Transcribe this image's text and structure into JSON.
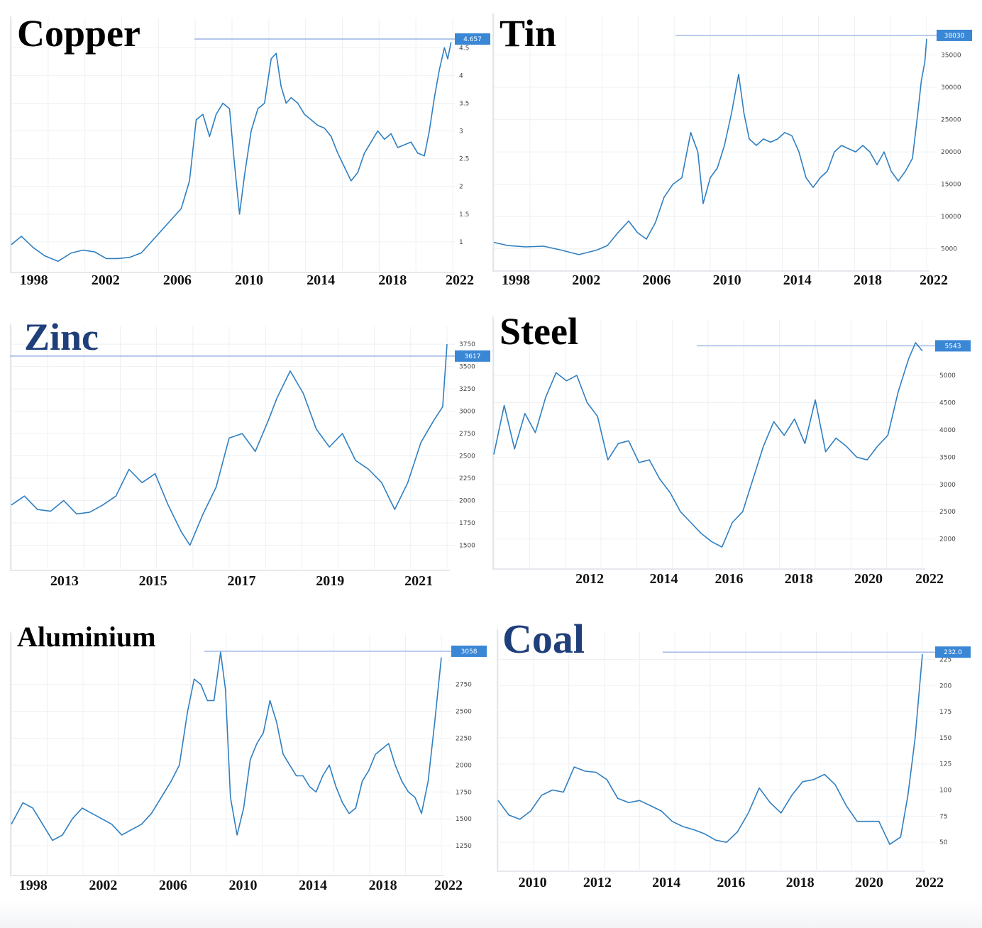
{
  "chart_data": [
    {
      "type": "line",
      "title": "Copper",
      "title_color": "#000000",
      "x_ticks": [
        "1998",
        "2002",
        "2006",
        "2010",
        "2014",
        "2018",
        "2022"
      ],
      "xlim": [
        1995.2,
        2021.7
      ],
      "y_ticks": [
        "1",
        "1.5",
        "2",
        "2.5",
        "3",
        "3.5",
        "4",
        "4.5"
      ],
      "ylim": [
        0.5,
        4.9
      ],
      "current_value": 4.657,
      "current_label": "4.657",
      "x": [
        1995.2,
        1995.8,
        1996.5,
        1997.2,
        1998,
        1998.8,
        1999.5,
        2000.2,
        2000.9,
        2001.6,
        2002.3,
        2003,
        2003.6,
        2004.2,
        2004.8,
        2005.4,
        2005.9,
        2006.3,
        2006.7,
        2007.1,
        2007.5,
        2007.9,
        2008.3,
        2008.6,
        2008.9,
        2009.2,
        2009.6,
        2010,
        2010.4,
        2010.8,
        2011.1,
        2011.4,
        2011.7,
        2012,
        2012.4,
        2012.8,
        2013.2,
        2013.6,
        2014,
        2014.4,
        2014.8,
        2015.2,
        2015.6,
        2016,
        2016.4,
        2016.8,
        2017.2,
        2017.6,
        2018,
        2018.4,
        2018.8,
        2019.2,
        2019.6,
        2020,
        2020.3,
        2020.6,
        2020.9,
        2021.2,
        2021.4,
        2021.6
      ],
      "y": [
        0.95,
        1.1,
        0.9,
        0.75,
        0.65,
        0.8,
        0.85,
        0.82,
        0.7,
        0.7,
        0.72,
        0.8,
        1.0,
        1.2,
        1.4,
        1.6,
        2.1,
        3.2,
        3.3,
        2.9,
        3.3,
        3.5,
        3.4,
        2.4,
        1.5,
        2.2,
        3.0,
        3.4,
        3.5,
        4.3,
        4.4,
        3.8,
        3.5,
        3.6,
        3.5,
        3.3,
        3.2,
        3.1,
        3.05,
        2.9,
        2.6,
        2.35,
        2.1,
        2.25,
        2.6,
        2.8,
        3.0,
        2.85,
        2.95,
        2.7,
        2.75,
        2.8,
        2.6,
        2.55,
        3.0,
        3.6,
        4.1,
        4.5,
        4.3,
        4.6
      ]
    },
    {
      "type": "line",
      "title": "Tin",
      "title_color": "#000000",
      "x_ticks": [
        "1998",
        "2002",
        "2006",
        "2010",
        "2014",
        "2018",
        "2022"
      ],
      "xlim": [
        1997.2,
        2021.6
      ],
      "y_ticks": [
        "5000",
        "10000",
        "15000",
        "20000",
        "25000",
        "30000",
        "35000"
      ],
      "ylim": [
        2000,
        40000
      ],
      "current_value": 38030,
      "current_label": "38030",
      "x": [
        1997.2,
        1998,
        1999,
        2000,
        2001,
        2002,
        2003,
        2003.6,
        2004.2,
        2004.8,
        2005.3,
        2005.8,
        2006.3,
        2006.8,
        2007.3,
        2007.8,
        2008.3,
        2008.7,
        2009,
        2009.4,
        2009.8,
        2010.2,
        2010.6,
        2011,
        2011.3,
        2011.6,
        2012,
        2012.4,
        2012.8,
        2013.2,
        2013.6,
        2014,
        2014.4,
        2014.8,
        2015.2,
        2015.6,
        2016,
        2016.4,
        2016.8,
        2017.2,
        2017.6,
        2018,
        2018.4,
        2018.8,
        2019.2,
        2019.6,
        2020,
        2020.4,
        2020.8,
        2021.1,
        2021.3,
        2021.5,
        2021.6
      ],
      "y": [
        6000,
        5500,
        5300,
        5400,
        4800,
        4100,
        4800,
        5500,
        7500,
        9300,
        7500,
        6500,
        9000,
        13000,
        15000,
        16000,
        23000,
        20000,
        12000,
        16000,
        17500,
        21000,
        26000,
        32000,
        26000,
        22000,
        21000,
        22000,
        21500,
        22000,
        23000,
        22500,
        20000,
        16000,
        14500,
        16000,
        17000,
        20000,
        21000,
        20500,
        20000,
        21000,
        20000,
        18000,
        20000,
        17000,
        15500,
        17000,
        19000,
        26000,
        31000,
        34000,
        37500
      ]
    },
    {
      "type": "line",
      "title": "Zinc",
      "title_color": "#1f3f7a",
      "x_ticks": [
        "2013",
        "2015",
        "2017",
        "2019",
        "2021"
      ],
      "xlim": [
        2011.9,
        2021.9
      ],
      "y_ticks": [
        "1500",
        "1750",
        "2000",
        "2250",
        "2500",
        "2750",
        "3000",
        "3250",
        "3500",
        "3750"
      ],
      "ylim": [
        1250,
        3870
      ],
      "current_value": 3617,
      "current_label": "3617",
      "x": [
        2011.9,
        2012.2,
        2012.5,
        2012.8,
        2013.1,
        2013.4,
        2013.7,
        2014,
        2014.3,
        2014.6,
        2014.9,
        2015.2,
        2015.5,
        2015.8,
        2016,
        2016.3,
        2016.6,
        2016.9,
        2017.2,
        2017.5,
        2017.8,
        2018,
        2018.3,
        2018.6,
        2018.9,
        2019.2,
        2019.5,
        2019.8,
        2020.1,
        2020.4,
        2020.7,
        2021,
        2021.3,
        2021.6,
        2021.8,
        2021.9
      ],
      "y": [
        1950,
        2050,
        1900,
        1880,
        2000,
        1850,
        1870,
        1950,
        2050,
        2350,
        2200,
        2300,
        1950,
        1650,
        1500,
        1850,
        2150,
        2700,
        2750,
        2550,
        2900,
        3150,
        3450,
        3200,
        2800,
        2600,
        2750,
        2450,
        2350,
        2200,
        1900,
        2200,
        2650,
        2900,
        3050,
        3750
      ]
    },
    {
      "type": "line",
      "title": "Steel",
      "title_color": "#000000",
      "x_ticks": [
        "2012",
        "2014",
        "2016",
        "2018",
        "2020",
        "2022"
      ],
      "xlim": [
        2009.3,
        2021.7
      ],
      "y_ticks": [
        "2000",
        "2500",
        "3000",
        "3500",
        "4000",
        "4500",
        "5000"
      ],
      "ylim": [
        1500,
        5900
      ],
      "current_value": 5543,
      "current_label": "5543",
      "x": [
        2009.3,
        2009.6,
        2009.9,
        2010.2,
        2010.5,
        2010.8,
        2011.1,
        2011.4,
        2011.7,
        2012,
        2012.3,
        2012.6,
        2012.9,
        2013.2,
        2013.5,
        2013.8,
        2014.1,
        2014.4,
        2014.7,
        2015,
        2015.3,
        2015.6,
        2015.9,
        2016.2,
        2016.5,
        2016.8,
        2017.1,
        2017.4,
        2017.7,
        2018,
        2018.3,
        2018.6,
        2018.9,
        2019.2,
        2019.5,
        2019.8,
        2020.1,
        2020.4,
        2020.7,
        2021,
        2021.3,
        2021.5,
        2021.7
      ],
      "y": [
        3550,
        4450,
        3650,
        4300,
        3950,
        4600,
        5050,
        4900,
        5000,
        4500,
        4250,
        3450,
        3750,
        3800,
        3400,
        3450,
        3100,
        2850,
        2500,
        2300,
        2100,
        1950,
        1850,
        2300,
        2500,
        3100,
        3700,
        4150,
        3900,
        4200,
        3750,
        4550,
        3600,
        3850,
        3700,
        3500,
        3450,
        3700,
        3900,
        4700,
        5300,
        5600,
        5450
      ]
    },
    {
      "type": "line",
      "title": "Aluminium",
      "title_color": "#000000",
      "x_ticks": [
        "1998",
        "2002",
        "2006",
        "2010",
        "2014",
        "2018",
        "2022"
      ],
      "xlim": [
        1995.3,
        2021.4
      ],
      "y_ticks": [
        "1250",
        "1500",
        "1750",
        "2000",
        "2250",
        "2500",
        "2750"
      ],
      "ylim": [
        1000,
        3150
      ],
      "current_value": 3058,
      "current_label": "3058",
      "x": [
        1995.3,
        1996,
        1996.6,
        1997.2,
        1997.8,
        1998.4,
        1999,
        1999.6,
        2000.2,
        2000.8,
        2001.4,
        2002,
        2002.6,
        2003.2,
        2003.8,
        2004.4,
        2005,
        2005.5,
        2006,
        2006.4,
        2006.8,
        2007.2,
        2007.6,
        2008,
        2008.3,
        2008.6,
        2009,
        2009.4,
        2009.8,
        2010.2,
        2010.6,
        2011,
        2011.4,
        2011.8,
        2012.2,
        2012.6,
        2013,
        2013.4,
        2013.8,
        2014.2,
        2014.6,
        2015,
        2015.4,
        2015.8,
        2016.2,
        2016.6,
        2017,
        2017.4,
        2017.8,
        2018.2,
        2018.6,
        2019,
        2019.4,
        2019.8,
        2020.2,
        2020.6,
        2021,
        2021.4
      ],
      "y": [
        1450,
        1650,
        1600,
        1450,
        1300,
        1350,
        1500,
        1600,
        1550,
        1500,
        1450,
        1350,
        1400,
        1450,
        1550,
        1700,
        1850,
        2000,
        2500,
        2800,
        2750,
        2600,
        2600,
        3050,
        2700,
        1700,
        1350,
        1600,
        2050,
        2200,
        2300,
        2600,
        2400,
        2100,
        2000,
        1900,
        1900,
        1800,
        1750,
        1900,
        2000,
        1800,
        1650,
        1550,
        1600,
        1850,
        1950,
        2100,
        2150,
        2200,
        2000,
        1850,
        1750,
        1700,
        1550,
        1850,
        2400,
        3000
      ]
    },
    {
      "type": "line",
      "title": "Coal",
      "title_color": "#1f3f7a",
      "x_ticks": [
        "2010",
        "2012",
        "2014",
        "2016",
        "2018",
        "2020",
        "2022"
      ],
      "xlim": [
        2009.9,
        2021.6
      ],
      "y_ticks": [
        "50",
        "75",
        "100",
        "125",
        "150",
        "175",
        "200",
        "225"
      ],
      "ylim": [
        25,
        245
      ],
      "current_value": 232.0,
      "current_label": "232.0",
      "x": [
        2009.9,
        2010.2,
        2010.5,
        2010.8,
        2011.1,
        2011.4,
        2011.7,
        2012,
        2012.3,
        2012.6,
        2012.9,
        2013.2,
        2013.5,
        2013.8,
        2014.1,
        2014.4,
        2014.7,
        2015,
        2015.3,
        2015.6,
        2015.9,
        2016.2,
        2016.5,
        2016.8,
        2017.1,
        2017.4,
        2017.7,
        2018,
        2018.3,
        2018.6,
        2018.9,
        2019.2,
        2019.5,
        2019.8,
        2020.1,
        2020.4,
        2020.7,
        2021,
        2021.2,
        2021.4,
        2021.6
      ],
      "y": [
        90,
        76,
        72,
        80,
        95,
        100,
        98,
        122,
        118,
        117,
        110,
        92,
        88,
        90,
        85,
        80,
        70,
        65,
        62,
        58,
        52,
        50,
        60,
        78,
        102,
        88,
        78,
        95,
        108,
        110,
        115,
        105,
        85,
        70,
        70,
        70,
        48,
        55,
        95,
        150,
        230
      ]
    }
  ]
}
